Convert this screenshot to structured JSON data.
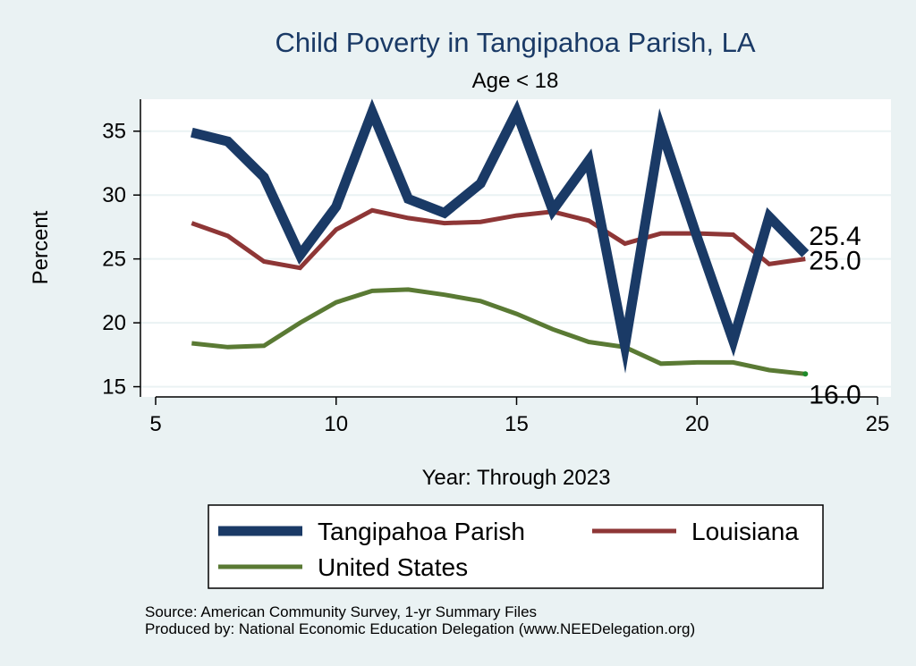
{
  "chart_data": {
    "type": "line",
    "title": "Child Poverty in Tangipahoa Parish, LA",
    "subtitle": "Age < 18",
    "xlabel": "Year: Through 2023",
    "ylabel": "Percent",
    "xlim": [
      5,
      25
    ],
    "ylim": [
      14.2,
      37.5
    ],
    "xticks": [
      5,
      10,
      15,
      20,
      25
    ],
    "yticks": [
      15,
      20,
      25,
      30,
      35
    ],
    "grid": true,
    "legend_position": "bottom",
    "series": [
      {
        "name": "Tangipahoa Parish",
        "color": "#1a3a66",
        "x": [
          6,
          7,
          8,
          9,
          10,
          11,
          12,
          13,
          14,
          15,
          16,
          17,
          18,
          19,
          20,
          21,
          22,
          23
        ],
        "values": [
          34.9,
          34.2,
          31.4,
          25.3,
          29.1,
          36.5,
          29.7,
          28.6,
          30.9,
          36.5,
          28.8,
          32.7,
          18.2,
          35.2,
          26.7,
          18.6,
          28.3,
          25.4
        ],
        "end_label": "25.4"
      },
      {
        "name": "Louisiana",
        "color": "#8e3636",
        "x": [
          6,
          7,
          8,
          9,
          10,
          11,
          12,
          13,
          14,
          15,
          16,
          17,
          18,
          19,
          20,
          21,
          22,
          23
        ],
        "values": [
          27.8,
          26.8,
          24.8,
          24.3,
          27.3,
          28.8,
          28.2,
          27.8,
          27.9,
          28.4,
          28.7,
          28.0,
          26.2,
          27.0,
          27.0,
          26.9,
          24.6,
          25.0
        ],
        "end_label": "25.0"
      },
      {
        "name": "United States",
        "color": "#5a7a34",
        "x": [
          6,
          7,
          8,
          9,
          10,
          11,
          12,
          13,
          14,
          15,
          16,
          17,
          18,
          19,
          20,
          21,
          22,
          23
        ],
        "values": [
          18.4,
          18.1,
          18.2,
          20.0,
          21.6,
          22.5,
          22.6,
          22.2,
          21.7,
          20.7,
          19.5,
          18.5,
          18.1,
          16.8,
          16.9,
          16.9,
          16.3,
          16.0
        ],
        "end_label": "16.0"
      }
    ]
  },
  "notes": {
    "source": "Source: American Community Survey, 1-yr Summary Files",
    "produced": "Produced by: National Economic Education Delegation (www.NEEDelegation.org)"
  }
}
